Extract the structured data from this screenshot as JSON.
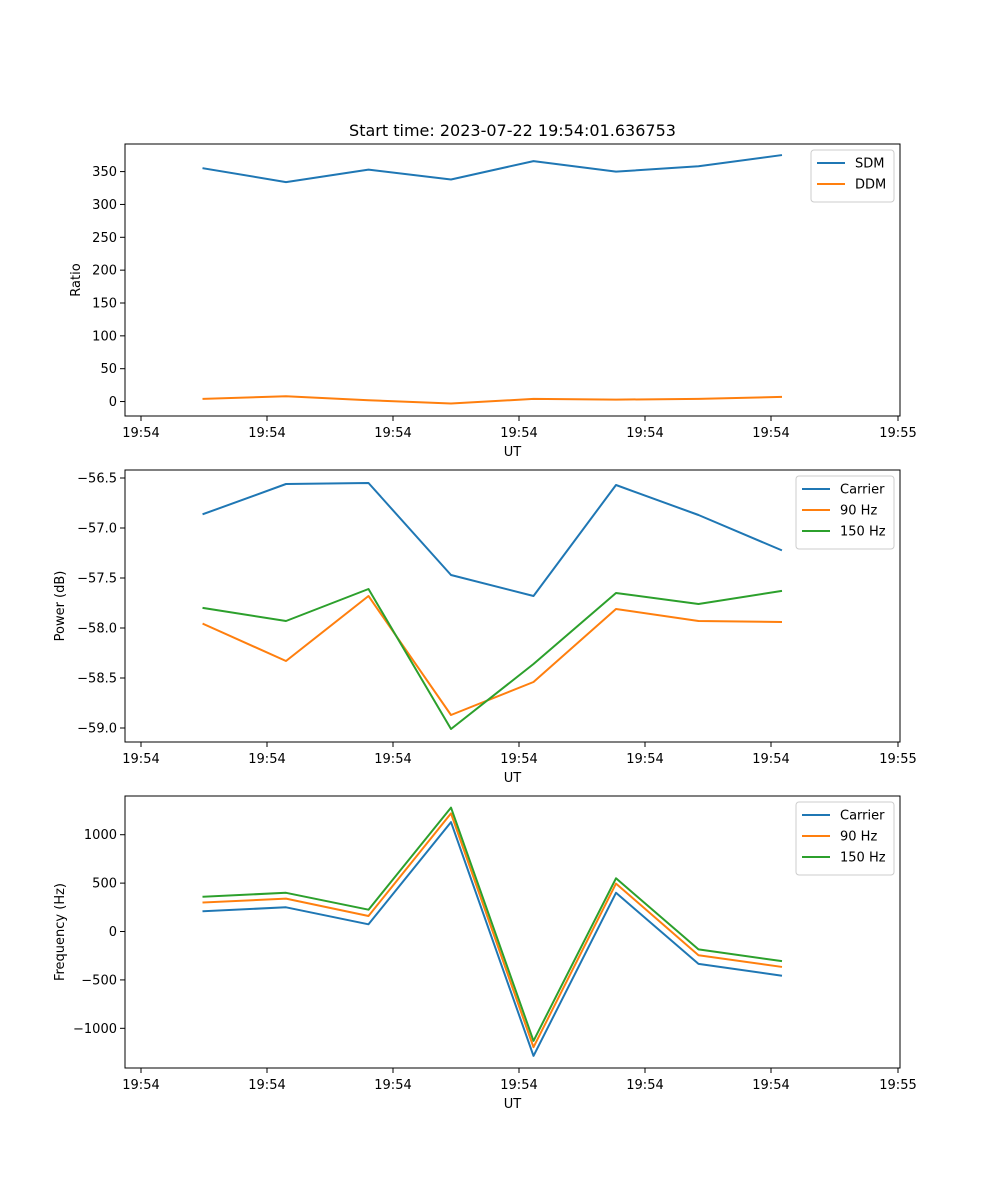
{
  "figure": {
    "title": "Start time: 2023-07-22 19:54:01.636753"
  },
  "chart_data": [
    {
      "type": "line",
      "title": "Start time: 2023-07-22 19:54:01.636753",
      "xlabel": "UT",
      "ylabel": "Ratio",
      "x_tick_labels": [
        "19:54",
        "19:54",
        "19:54",
        "19:54",
        "19:54",
        "19:54",
        "19:55"
      ],
      "x_index": [
        0,
        1,
        2,
        3,
        4,
        5,
        6,
        7
      ],
      "yticks": [
        0,
        50,
        100,
        150,
        200,
        250,
        300,
        350
      ],
      "ylim": [
        -22,
        392
      ],
      "legend_position": "top-right",
      "series": [
        {
          "name": "SDM",
          "color": "#1f77b4",
          "values": [
            355,
            334,
            353,
            338,
            366,
            350,
            358,
            375
          ]
        },
        {
          "name": "DDM",
          "color": "#ff7f0e",
          "values": [
            4,
            8,
            2,
            -3,
            4,
            3,
            4,
            7
          ]
        }
      ]
    },
    {
      "type": "line",
      "title": "",
      "xlabel": "UT",
      "ylabel": "Power (dB)",
      "x_tick_labels": [
        "19:54",
        "19:54",
        "19:54",
        "19:54",
        "19:54",
        "19:54",
        "19:55"
      ],
      "x_index": [
        0,
        1,
        2,
        3,
        4,
        5,
        6,
        7
      ],
      "yticks": [
        -59.0,
        -58.5,
        -58.0,
        -57.5,
        -57.0,
        -56.5
      ],
      "ytick_labels": [
        "−59.0",
        "−58.5",
        "−58.0",
        "−57.5",
        "−57.0",
        "−56.5"
      ],
      "ylim": [
        -59.14,
        -56.42
      ],
      "legend_position": "top-right",
      "series": [
        {
          "name": "Carrier",
          "color": "#1f77b4",
          "values": [
            -56.86,
            -56.56,
            -56.55,
            -57.47,
            -57.68,
            -56.57,
            -56.87,
            -57.22
          ]
        },
        {
          "name": "90 Hz",
          "color": "#ff7f0e",
          "values": [
            -57.96,
            -58.33,
            -57.68,
            -58.87,
            -58.54,
            -57.81,
            -57.93,
            -57.94
          ]
        },
        {
          "name": "150 Hz",
          "color": "#2ca02c",
          "values": [
            -57.8,
            -57.93,
            -57.61,
            -59.01,
            -58.36,
            -57.65,
            -57.76,
            -57.63
          ]
        }
      ]
    },
    {
      "type": "line",
      "title": "",
      "xlabel": "UT",
      "ylabel": "Frequency (Hz)",
      "x_tick_labels": [
        "19:54",
        "19:54",
        "19:54",
        "19:54",
        "19:54",
        "19:54",
        "19:55"
      ],
      "x_index": [
        0,
        1,
        2,
        3,
        4,
        5,
        6,
        7
      ],
      "yticks": [
        -1000,
        -500,
        0,
        500,
        1000
      ],
      "ytick_labels": [
        "−1000",
        "−500",
        "0",
        "500",
        "1000"
      ],
      "ylim": [
        -1410,
        1400
      ],
      "legend_position": "top-right",
      "series": [
        {
          "name": "Carrier",
          "color": "#1f77b4",
          "values": [
            210,
            250,
            75,
            1130,
            -1285,
            400,
            -335,
            -455
          ]
        },
        {
          "name": "90 Hz",
          "color": "#ff7f0e",
          "values": [
            300,
            340,
            160,
            1220,
            -1195,
            495,
            -245,
            -365
          ]
        },
        {
          "name": "150 Hz",
          "color": "#2ca02c",
          "values": [
            360,
            400,
            225,
            1280,
            -1130,
            550,
            -185,
            -305
          ]
        }
      ]
    }
  ]
}
